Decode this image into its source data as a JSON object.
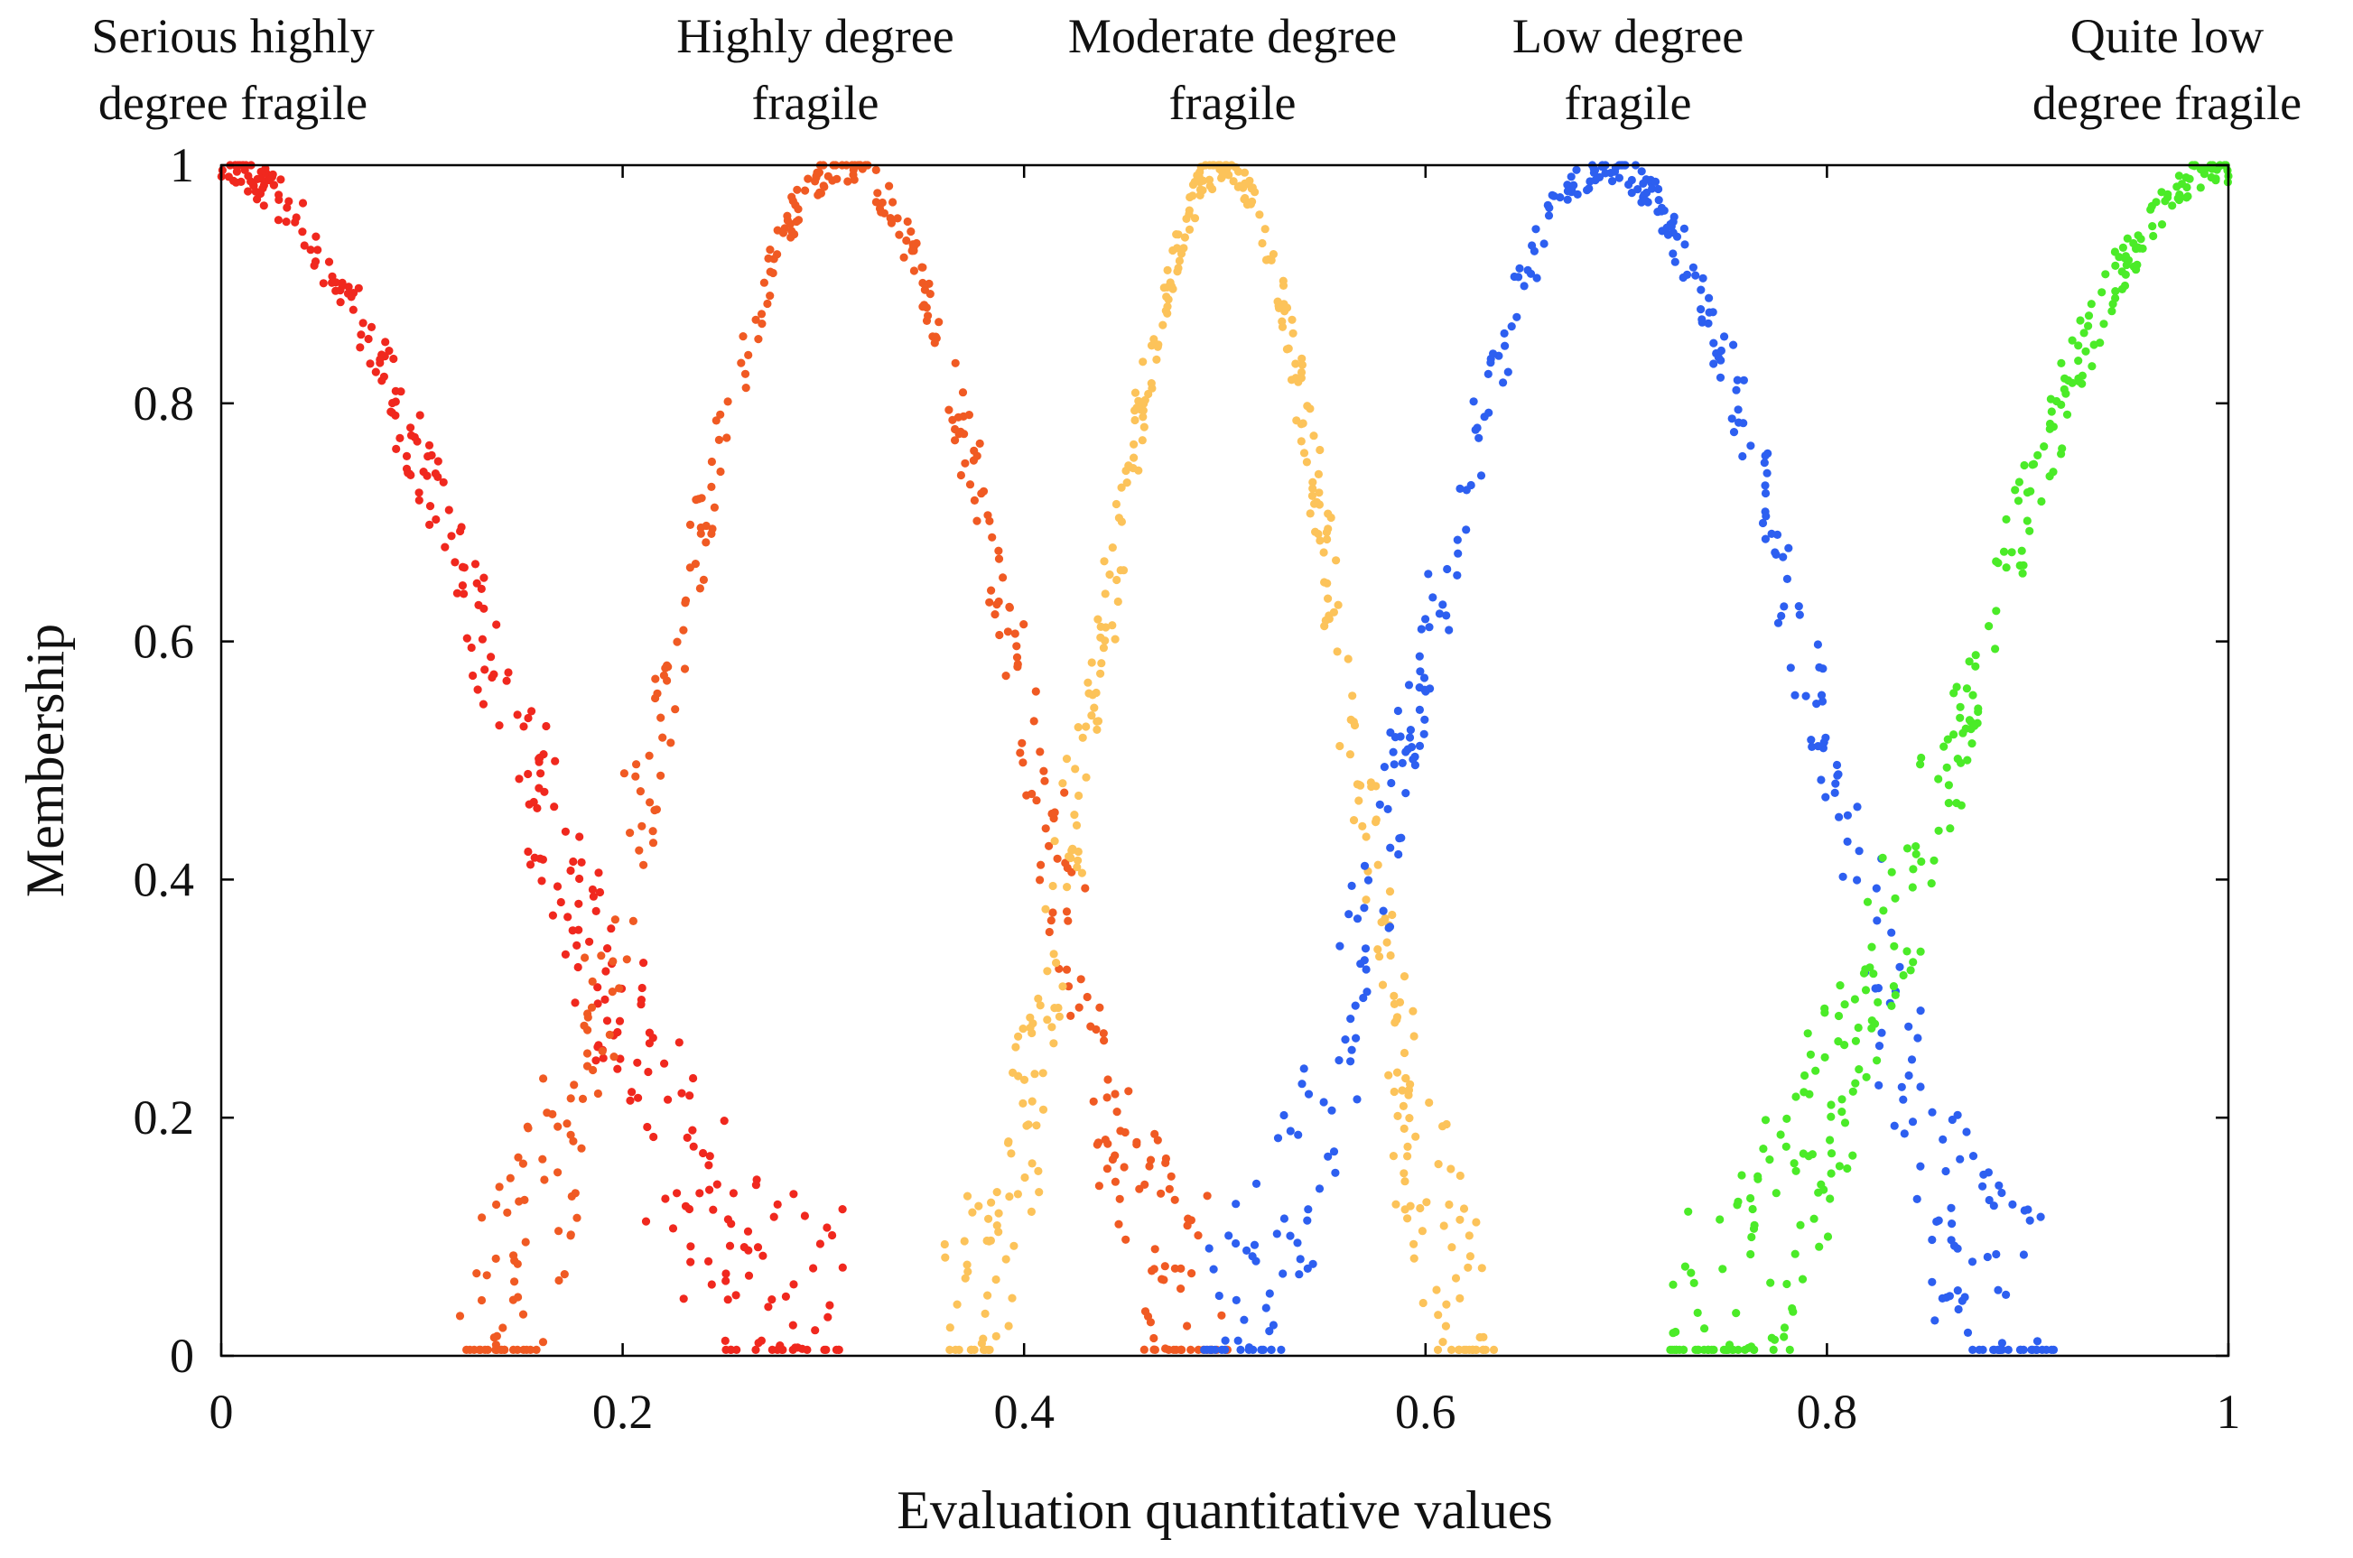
{
  "chart_data": {
    "type": "scatter",
    "title": "",
    "xlabel": "Evaluation quantitative values",
    "ylabel": "Membership",
    "xlim": [
      0,
      1
    ],
    "ylim": [
      0,
      1
    ],
    "xticks": [
      0,
      0.2,
      0.4,
      0.6,
      0.8,
      1
    ],
    "xtick_labels": [
      "0",
      "0.2",
      "0.4",
      "0.6",
      "0.8",
      "1"
    ],
    "yticks": [
      0,
      0.2,
      0.4,
      0.6,
      0.8,
      1
    ],
    "ytick_labels": [
      "0",
      "0.2",
      "0.4",
      "0.6",
      "0.8",
      "1"
    ],
    "grid": false,
    "series": [
      {
        "name": "Serious highly degree fragile",
        "label_lines": [
          "Serious highly",
          "degree fragile"
        ],
        "color": "#f0281e",
        "shape": "left-shoulder",
        "peak": 0.0,
        "zero_at": 0.31,
        "points": 320,
        "seed": 11
      },
      {
        "name": "Highly degree fragile",
        "label_lines": [
          "Highly degree",
          "fragile"
        ],
        "color": "#f05a23",
        "shape": "bell",
        "peak": 0.31,
        "zero_at": [
          0.12,
          0.5
        ],
        "points": 420,
        "seed": 23
      },
      {
        "name": "Moderate degree fragile",
        "label_lines": [
          "Moderate degree",
          "fragile"
        ],
        "color": "#fcc35a",
        "shape": "bell",
        "peak": 0.5,
        "zero_at": [
          0.36,
          0.63
        ],
        "points": 420,
        "seed": 37
      },
      {
        "name": "Low degree fragile",
        "label_lines": [
          "Low degree",
          "fragile"
        ],
        "color": "#2d5ff0",
        "shape": "bell",
        "peak": 0.69,
        "zero_at": [
          0.49,
          0.91
        ],
        "points": 420,
        "seed": 41
      },
      {
        "name": "Quite low degree fragile",
        "label_lines": [
          "Quite low",
          "degree fragile"
        ],
        "color": "#4beb28",
        "shape": "right-shoulder",
        "peak": 1.0,
        "zero_at": 0.72,
        "points": 320,
        "seed": 53
      }
    ]
  }
}
